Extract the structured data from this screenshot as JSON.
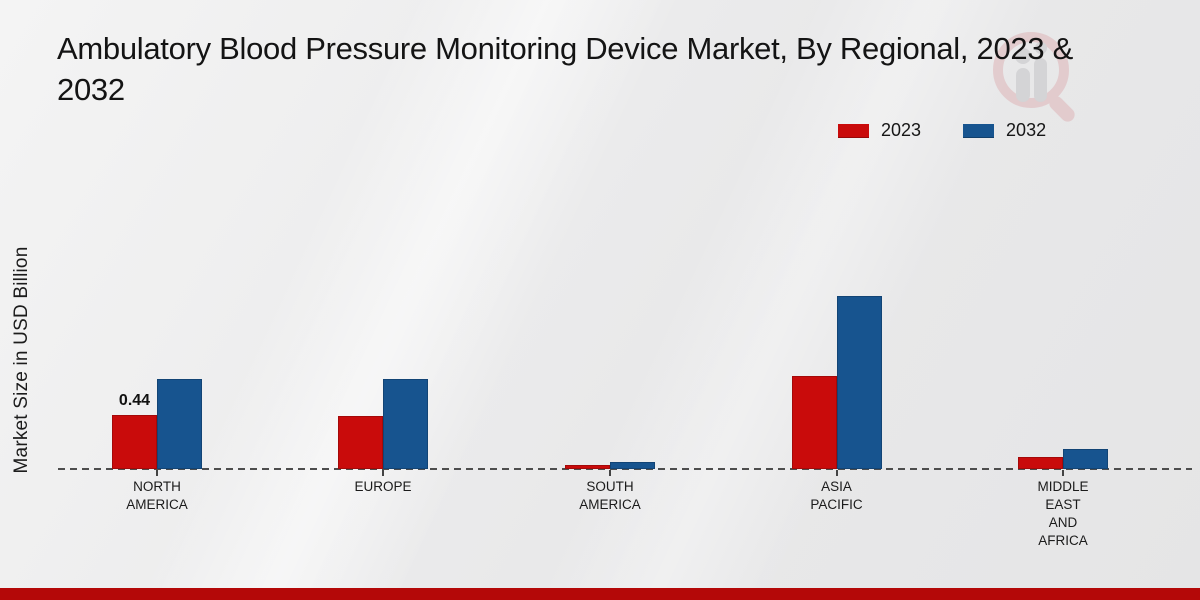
{
  "page": {
    "title": "Ambulatory Blood Pressure Monitoring Device Market, By Regional, 2023 & 2032"
  },
  "legend": {
    "items": [
      {
        "label": "2023",
        "color": "#c90b0b"
      },
      {
        "label": "2032",
        "color": "#17548f"
      }
    ]
  },
  "watermark": {
    "icon": "magnifier-bars-logo-icon"
  },
  "chart_data": {
    "type": "bar",
    "title": "Ambulatory Blood Pressure Monitoring Device Market, By Regional, 2023 & 2032",
    "xlabel": "",
    "ylabel": "Market Size in USD Billion",
    "ylim": [
      0,
      1.6
    ],
    "grid": false,
    "legend_position": "top-right",
    "baseline_style": "dashed",
    "categories": [
      "North America",
      "Europe",
      "South America",
      "Asia Pacific",
      "Middle East and Africa"
    ],
    "tick_labels": [
      [
        "NORTH",
        "AMERICA"
      ],
      [
        "EUROPE"
      ],
      [
        "SOUTH",
        "AMERICA"
      ],
      [
        "ASIA",
        "PACIFIC"
      ],
      [
        "MIDDLE",
        "EAST",
        "AND",
        "AFRICA"
      ]
    ],
    "series": [
      {
        "name": "2023",
        "color": "#c90b0b",
        "values": [
          0.44,
          0.43,
          0.03,
          0.76,
          0.1
        ]
      },
      {
        "name": "2032",
        "color": "#17548f",
        "values": [
          0.73,
          0.73,
          0.06,
          1.41,
          0.16
        ]
      }
    ],
    "annotations": [
      {
        "series": "2023",
        "category": "North America",
        "text": "0.44"
      }
    ]
  },
  "footer": {
    "accent_color": "#b40808"
  }
}
